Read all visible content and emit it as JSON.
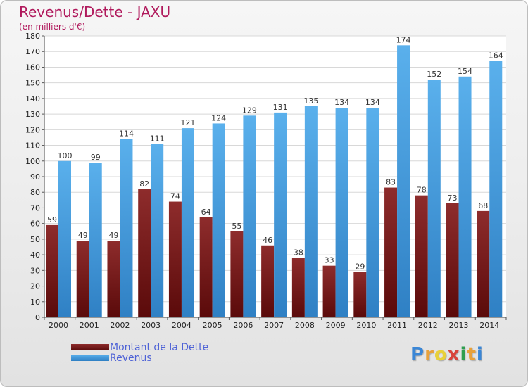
{
  "title": "Revenus/Dette - JAXU",
  "subtitle": "(en milliers d'€)",
  "colors": {
    "debt_top": "#8e2c2c",
    "debt_bottom": "#5a0a0a",
    "revenue_top": "#5ab0ec",
    "revenue_bottom": "#2f80c4",
    "title": "#b0195c",
    "legend_text": "#4f63d6"
  },
  "chart_data": {
    "type": "bar",
    "categories": [
      "2000",
      "2001",
      "2002",
      "2003",
      "2004",
      "2005",
      "2006",
      "2007",
      "2008",
      "2009",
      "2010",
      "2011",
      "2012",
      "2013",
      "2014"
    ],
    "series": [
      {
        "name": "Montant de la Dette",
        "values": [
          59,
          49,
          49,
          82,
          74,
          64,
          55,
          46,
          38,
          33,
          29,
          83,
          78,
          73,
          68
        ]
      },
      {
        "name": "Revenus",
        "values": [
          100,
          99,
          114,
          111,
          121,
          124,
          129,
          131,
          135,
          134,
          134,
          174,
          152,
          154,
          164
        ]
      }
    ],
    "ylim": [
      0,
      180
    ],
    "ytick_step": 10,
    "grid": true,
    "legend_position": "bottom-left"
  },
  "legend": [
    {
      "label": "Montant de la Dette"
    },
    {
      "label": "Revenus"
    }
  ],
  "logo": {
    "letters": [
      "P",
      "r",
      "o",
      "x",
      "i",
      "t",
      "i"
    ],
    "colors": [
      "#3a86d6",
      "#e8a13a",
      "#e8d03a",
      "#d8443a",
      "#2e9e4f",
      "#e8a13a",
      "#3a86d6"
    ]
  }
}
